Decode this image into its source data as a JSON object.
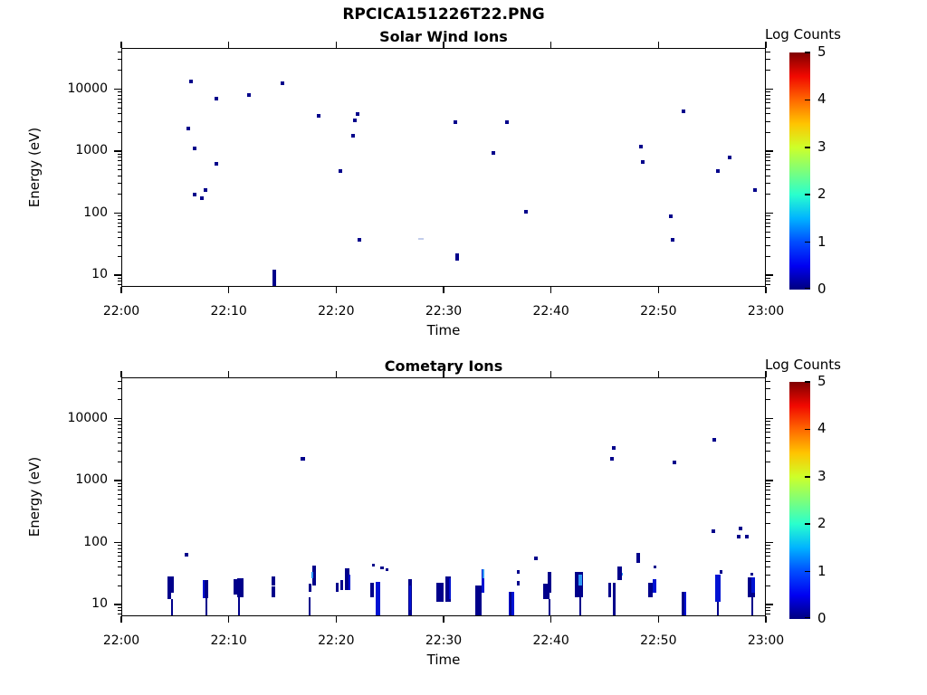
{
  "figure_title": "RPCICA151226T22.PNG",
  "colors": {
    "navy": "#00008b",
    "blue": "#0013d3",
    "lightblue": "#2f9bf5",
    "faint": "#c3cdeb",
    "axis": "#000000"
  },
  "colorbar": {
    "title": "Log Counts",
    "ticks": [
      "0",
      "1",
      "2",
      "3",
      "4",
      "5"
    ],
    "min": 0,
    "max": 5,
    "gradient": [
      "#00007f",
      "#0000f1",
      "#004cff",
      "#00b3ff",
      "#29ffce",
      "#7dff7a",
      "#ceff29",
      "#ffc400",
      "#ff6800",
      "#f10800",
      "#7f0000"
    ]
  },
  "point_format": "[minutes_after_22:00, energy_eV, w_px(optional), h_px(optional), color_key(optional)]",
  "bar_format": "[minutes_after_22:00, width_px, energy_lo_eV, energy_hi_eV, color_key]",
  "chart_data": [
    {
      "type": "heatmap",
      "title": "Solar Wind Ions",
      "xlabel": "Time",
      "ylabel": "Energy (eV)",
      "x_tick_labels": [
        "22:00",
        "22:10",
        "22:20",
        "22:30",
        "22:40",
        "22:50",
        "23:00"
      ],
      "x_tick_minutes": [
        0,
        10,
        20,
        30,
        40,
        50,
        60
      ],
      "y_tick_labels": [
        "10",
        "100",
        "1000",
        "10000"
      ],
      "y_tick_values": [
        10,
        100,
        1000,
        10000
      ],
      "ylim": [
        6.6,
        46000
      ],
      "log_y": true,
      "legend": "Log Counts 0-5 jet colorbar",
      "points": [
        [
          6.3,
          2250
        ],
        [
          6.5,
          12900
        ],
        [
          6.9,
          1090
        ],
        [
          6.9,
          195
        ],
        [
          7.5,
          170
        ],
        [
          7.9,
          235
        ],
        [
          8.9,
          6800
        ],
        [
          8.9,
          610
        ],
        [
          11.9,
          7900
        ],
        [
          15.05,
          12100
        ],
        [
          18.4,
          3650
        ],
        [
          20.4,
          470
        ],
        [
          21.6,
          1770
        ],
        [
          21.8,
          3100
        ],
        [
          22.0,
          3950
        ],
        [
          22.2,
          36
        ],
        [
          27.9,
          38,
          6,
          2,
          "faint"
        ],
        [
          31.1,
          2850
        ],
        [
          34.7,
          925
        ],
        [
          35.9,
          2850
        ],
        [
          37.7,
          105
        ],
        [
          48.4,
          1170
        ],
        [
          48.6,
          660
        ],
        [
          51.2,
          86
        ],
        [
          51.4,
          36
        ],
        [
          52.4,
          4250
        ],
        [
          55.6,
          470
        ],
        [
          56.7,
          780
        ],
        [
          59.0,
          232
        ]
      ],
      "bars": [
        [
          14.25,
          4,
          6.6,
          12,
          "navy"
        ],
        [
          31.3,
          4,
          17,
          22,
          "navy"
        ]
      ]
    },
    {
      "type": "heatmap",
      "title": "Cometary Ions",
      "xlabel": "Time",
      "ylabel": "Energy (eV)",
      "x_tick_labels": [
        "22:00",
        "22:10",
        "22:20",
        "22:30",
        "22:40",
        "22:50",
        "23:00"
      ],
      "x_tick_minutes": [
        0,
        10,
        20,
        30,
        40,
        50,
        60
      ],
      "y_tick_labels": [
        "10",
        "100",
        "1000",
        "10000"
      ],
      "y_tick_values": [
        10,
        100,
        1000,
        10000
      ],
      "ylim": [
        6.6,
        46000
      ],
      "log_y": true,
      "legend": "Log Counts 0-5 jet colorbar",
      "points": [
        [
          6.15,
          63
        ],
        [
          16.95,
          2200,
          5,
          4
        ],
        [
          23.5,
          42,
          3,
          3
        ],
        [
          24.35,
          38,
          4,
          3
        ],
        [
          24.75,
          36,
          3,
          3
        ],
        [
          37.0,
          33,
          3,
          4
        ],
        [
          37.0,
          22,
          3,
          5
        ],
        [
          38.6,
          55
        ],
        [
          45.7,
          2200
        ],
        [
          45.9,
          3250
        ],
        [
          46.6,
          30,
          3,
          3,
          "lightblue"
        ],
        [
          49.7,
          40,
          3,
          3
        ],
        [
          51.5,
          1900
        ],
        [
          55.2,
          4400
        ],
        [
          55.15,
          152
        ],
        [
          55.9,
          33,
          3,
          4
        ],
        [
          57.7,
          168
        ],
        [
          57.5,
          124
        ],
        [
          58.3,
          124
        ],
        [
          58.7,
          30,
          3,
          3
        ]
      ],
      "bars": [
        [
          4.65,
          7,
          15,
          28,
          "navy"
        ],
        [
          4.55,
          4,
          12,
          15,
          "navy"
        ],
        [
          4.8,
          2,
          6.6,
          12,
          "navy"
        ],
        [
          7.9,
          6,
          12.5,
          24,
          "navy"
        ],
        [
          7.72,
          2,
          12.5,
          24,
          "blue"
        ],
        [
          8.0,
          2,
          6.6,
          12.5,
          "navy"
        ],
        [
          10.7,
          4,
          14,
          25,
          "navy"
        ],
        [
          11.15,
          7,
          13,
          26,
          "navy"
        ],
        [
          11.0,
          2,
          6.6,
          13,
          "navy"
        ],
        [
          14.2,
          4,
          20,
          28,
          "navy"
        ],
        [
          14.2,
          4,
          13,
          19,
          "navy"
        ],
        [
          17.6,
          3,
          16,
          21,
          "navy"
        ],
        [
          18.0,
          4,
          20,
          42,
          "navy"
        ],
        [
          17.85,
          2,
          26,
          33,
          "lightblue"
        ],
        [
          17.6,
          2,
          6.6,
          13,
          "navy"
        ],
        [
          20.1,
          3,
          16,
          22,
          "navy"
        ],
        [
          20.6,
          3,
          17,
          24,
          "navy"
        ],
        [
          21.1,
          5,
          17,
          38,
          "navy"
        ],
        [
          21.25,
          2,
          17,
          30,
          "blue"
        ],
        [
          23.4,
          4,
          13,
          22,
          "navy"
        ],
        [
          23.9,
          5,
          6.6,
          23,
          "blue"
        ],
        [
          26.9,
          4,
          6.6,
          25,
          "navy"
        ],
        [
          26.95,
          2,
          8,
          20,
          "blue"
        ],
        [
          29.7,
          8,
          11,
          22,
          "navy"
        ],
        [
          30.5,
          6,
          11,
          28,
          "navy"
        ],
        [
          30.6,
          2,
          12,
          26,
          "blue"
        ],
        [
          33.3,
          7,
          6.6,
          20,
          "navy"
        ],
        [
          33.7,
          3,
          15,
          36,
          "blue"
        ],
        [
          33.75,
          2,
          26,
          36,
          "lightblue"
        ],
        [
          36.4,
          6,
          6.6,
          16,
          "blue"
        ],
        [
          36.25,
          2,
          6.6,
          16,
          "navy"
        ],
        [
          39.6,
          7,
          12,
          21,
          "navy"
        ],
        [
          39.9,
          4,
          15,
          33,
          "navy"
        ],
        [
          39.9,
          2,
          6.6,
          12,
          "navy"
        ],
        [
          42.6,
          9,
          13,
          33,
          "navy"
        ],
        [
          42.75,
          4,
          20,
          30,
          "lightblue"
        ],
        [
          42.8,
          2,
          6.6,
          13,
          "navy"
        ],
        [
          45.5,
          3,
          13,
          22,
          "navy"
        ],
        [
          45.9,
          3,
          6.6,
          22,
          "navy"
        ],
        [
          46.4,
          5,
          24,
          40,
          "navy"
        ],
        [
          48.2,
          4,
          46,
          66,
          "navy"
        ],
        [
          49.3,
          5,
          13,
          22,
          "navy"
        ],
        [
          49.7,
          4,
          15,
          25,
          "blue"
        ],
        [
          52.4,
          5,
          6.6,
          16,
          "blue"
        ],
        [
          52.3,
          3,
          6.6,
          16,
          "navy"
        ],
        [
          55.6,
          6,
          11,
          30,
          "blue"
        ],
        [
          55.6,
          2,
          6.6,
          11,
          "navy"
        ],
        [
          58.7,
          8,
          13,
          27,
          "navy"
        ],
        [
          58.85,
          4,
          15,
          27,
          "blue"
        ],
        [
          58.8,
          2,
          6.6,
          13,
          "navy"
        ]
      ]
    }
  ]
}
